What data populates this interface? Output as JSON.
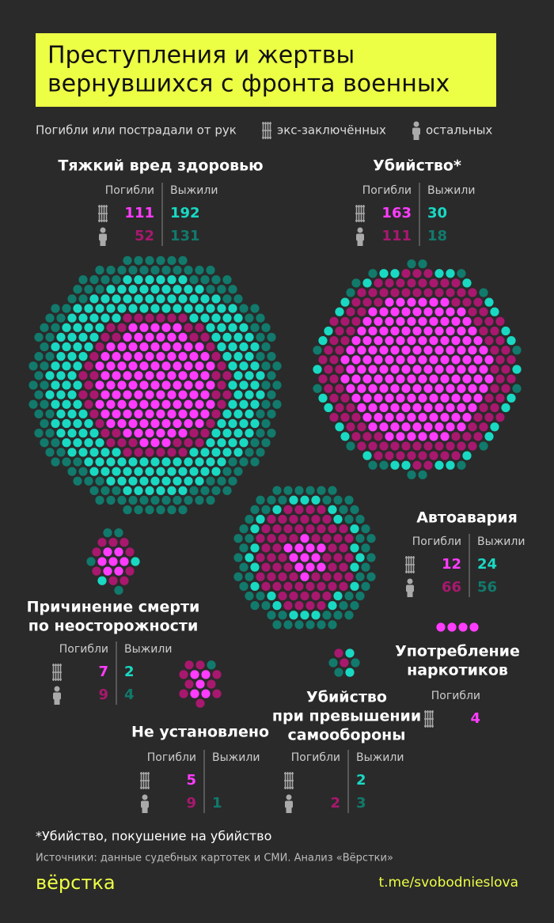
{
  "title": [
    "Преступления и жертвы",
    "вернувшихся с фронта военных"
  ],
  "legend": {
    "text": "Погибли или пострадали от рук",
    "items": [
      "экс-заключённых",
      "остальных"
    ]
  },
  "chart_data": [
    {
      "type": "dots",
      "title": [
        "Тяжкий вред здоровью"
      ],
      "categories": [
        "Погибли",
        "Выжили"
      ],
      "series": [
        {
          "colors": [
            "#ff3cff",
            "#19d9c3"
          ],
          "values": [
            111,
            192
          ]
        },
        {
          "colors": [
            "#a8186e",
            "#117a6c"
          ],
          "values": [
            52,
            131
          ]
        }
      ]
    },
    {
      "type": "dots",
      "title": [
        "Убийство*"
      ],
      "categories": [
        "Погибли",
        "Выжили"
      ],
      "series": [
        {
          "colors": [
            "#ff3cff",
            "#19d9c3"
          ],
          "values": [
            163,
            30
          ]
        },
        {
          "colors": [
            "#a8186e",
            "#117a6c"
          ],
          "values": [
            111,
            18
          ]
        }
      ]
    },
    {
      "type": "dots",
      "title": [
        "Автоавария"
      ],
      "categories": [
        "Погибли",
        "Выжили"
      ],
      "series": [
        {
          "colors": [
            "#ff3cff",
            "#19d9c3"
          ],
          "values": [
            12,
            24
          ]
        },
        {
          "colors": [
            "#a8186e",
            "#117a6c"
          ],
          "values": [
            66,
            56
          ]
        }
      ]
    },
    {
      "type": "dots",
      "title": [
        "Причинение смерти",
        "по неосторожности"
      ],
      "categories": [
        "Погибли",
        "Выжили"
      ],
      "series": [
        {
          "colors": [
            "#ff3cff",
            "#19d9c3"
          ],
          "values": [
            7,
            2
          ]
        },
        {
          "colors": [
            "#a8186e",
            "#117a6c"
          ],
          "values": [
            9,
            4
          ]
        }
      ]
    },
    {
      "type": "dots",
      "title": [
        "Не установлено"
      ],
      "categories": [
        "Погибли",
        "Выжили"
      ],
      "series": [
        {
          "colors": [
            "#ff3cff",
            "#19d9c3"
          ],
          "values": [
            5,
            null
          ]
        },
        {
          "colors": [
            "#a8186e",
            "#117a6c"
          ],
          "values": [
            9,
            1
          ]
        }
      ]
    },
    {
      "type": "dots",
      "title": [
        "Убийство",
        "при превышении",
        "самообороны"
      ],
      "categories": [
        "Погибли",
        "Выжили"
      ],
      "series": [
        {
          "colors": [
            "#ff3cff",
            "#19d9c3"
          ],
          "values": [
            null,
            2
          ]
        },
        {
          "colors": [
            "#a8186e",
            "#117a6c"
          ],
          "values": [
            2,
            3
          ]
        }
      ]
    },
    {
      "type": "dots",
      "title": [
        "Употребление",
        "наркотиков"
      ],
      "categories": [
        "Погибли"
      ],
      "series": [
        {
          "colors": [
            "#ff3cff"
          ],
          "values": [
            4
          ]
        }
      ]
    }
  ],
  "footnote": "*Убийство, покушение на убийство",
  "source": "Источники: данные судебных картотек и СМИ. Анализ «Вёрстки»",
  "logo": "вёрстка",
  "link": "t.me/svobodnieslova"
}
